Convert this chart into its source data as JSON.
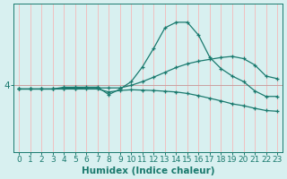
{
  "xlabel": "Humidex (Indice chaleur)",
  "x": [
    0,
    1,
    2,
    3,
    4,
    5,
    6,
    7,
    8,
    9,
    10,
    11,
    12,
    13,
    14,
    15,
    16,
    17,
    18,
    19,
    20,
    21,
    22,
    23
  ],
  "line1": [
    3.9,
    3.9,
    3.9,
    3.9,
    3.95,
    3.95,
    3.95,
    3.95,
    3.75,
    3.9,
    4.1,
    4.5,
    5.0,
    5.55,
    5.7,
    5.7,
    5.35,
    4.75,
    4.45,
    4.25,
    4.1,
    3.85,
    3.7,
    3.7
  ],
  "line2": [
    3.9,
    3.9,
    3.9,
    3.9,
    3.92,
    3.92,
    3.93,
    3.93,
    3.93,
    3.93,
    4.0,
    4.1,
    4.22,
    4.35,
    4.48,
    4.58,
    4.65,
    4.7,
    4.75,
    4.78,
    4.72,
    4.55,
    4.25,
    4.18
  ],
  "line3": [
    3.9,
    3.9,
    3.9,
    3.9,
    3.9,
    3.9,
    3.9,
    3.9,
    3.82,
    3.86,
    3.88,
    3.87,
    3.86,
    3.84,
    3.82,
    3.78,
    3.72,
    3.65,
    3.58,
    3.5,
    3.45,
    3.38,
    3.32,
    3.3
  ],
  "color": "#1a7a6e",
  "bg_color": "#d8f0f0",
  "vgrid_color": "#f0c0c0",
  "hgrid_color": "#c8a0a0",
  "ytick_label": "4",
  "ytick_val": 4.0,
  "ylim": [
    2.2,
    6.2
  ],
  "xlim": [
    -0.5,
    23.5
  ],
  "tick_fontsize": 6.5,
  "label_fontsize": 7.5
}
